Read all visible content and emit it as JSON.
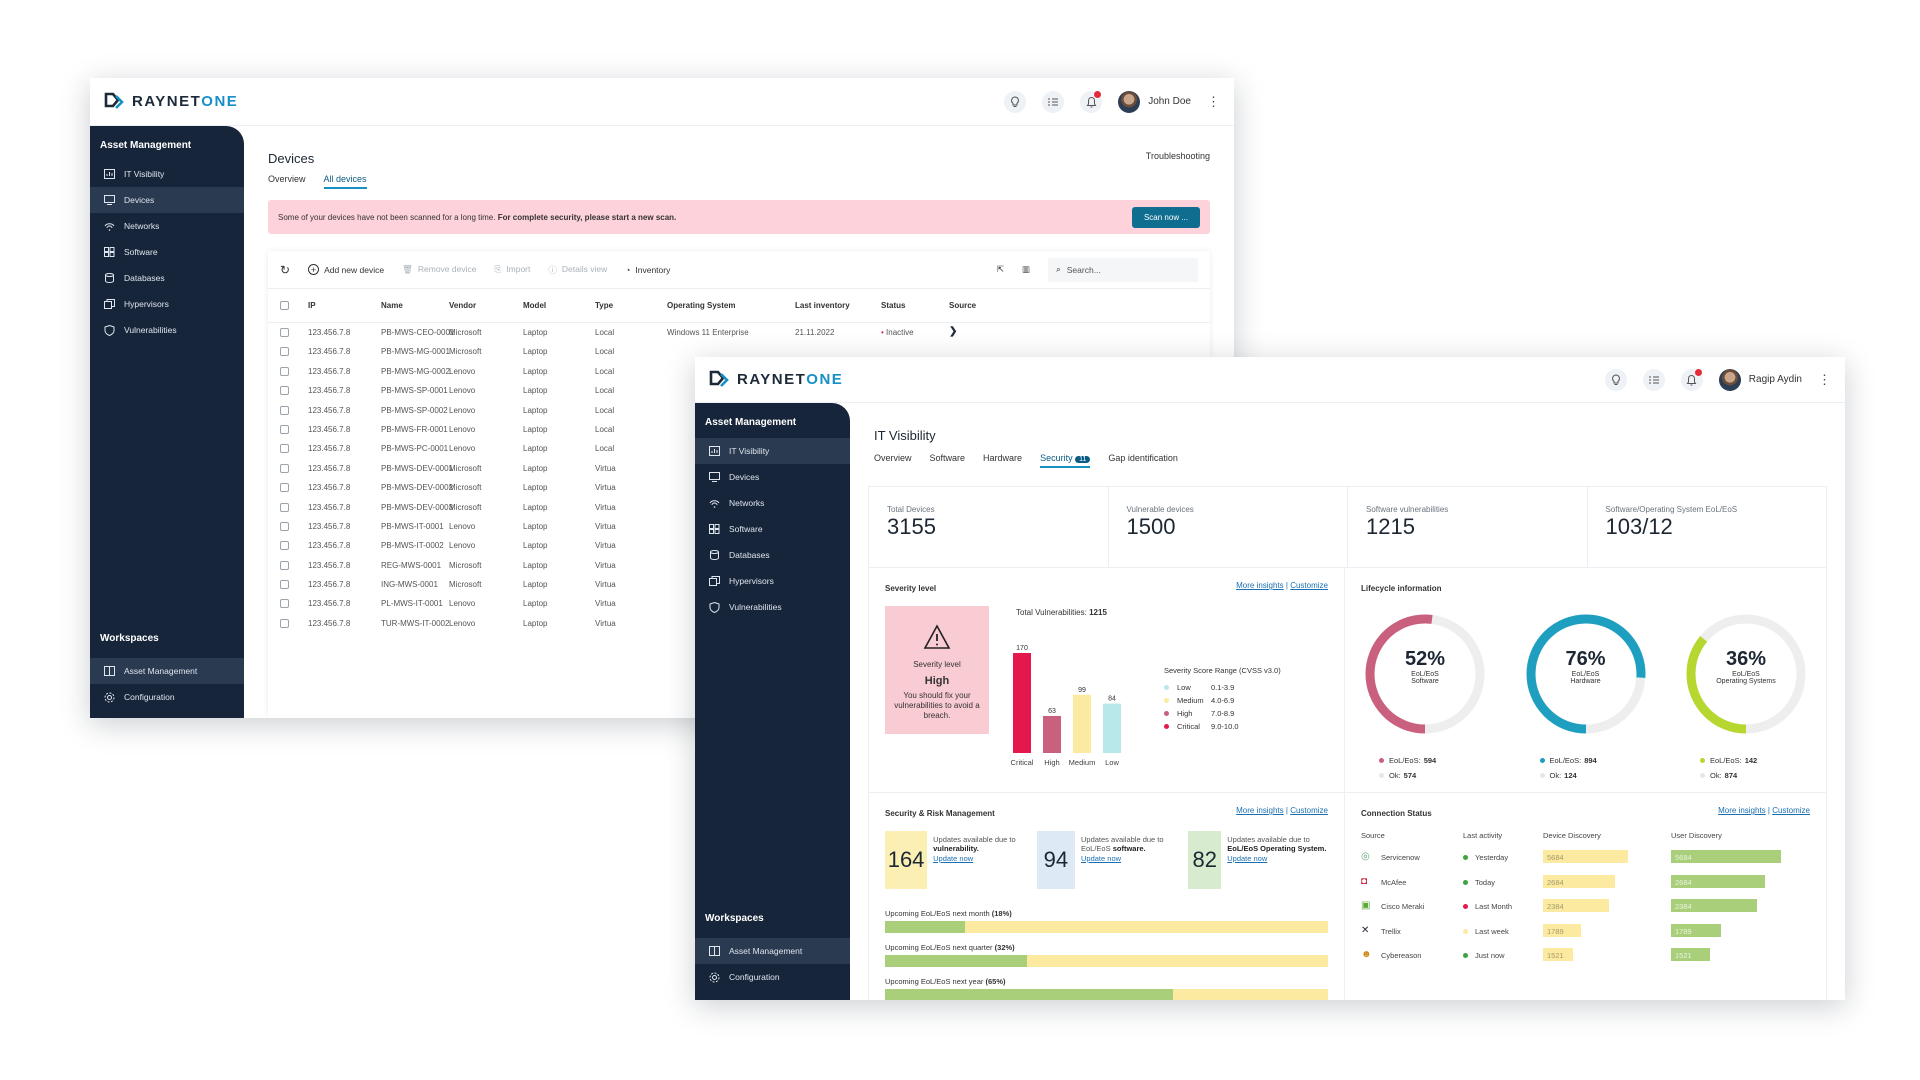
{
  "brand": {
    "name_a": "RAYNET",
    "name_b": "ONE",
    "color_dark": "#1d2a3a",
    "color_accent": "#1790c4"
  },
  "back": {
    "user": "John Doe",
    "sidebar": {
      "title": "Asset Management",
      "items": [
        "IT Visibility",
        "Devices",
        "Networks",
        "Software",
        "Databases",
        "Hypervisors",
        "Vulnerabilities"
      ],
      "workspaces_title": "Workspaces",
      "workspaces": [
        "Asset Management",
        "Configuration"
      ]
    },
    "page_title": "Devices",
    "troubleshooting": "Troubleshooting",
    "tabs": [
      "Overview",
      "All devices"
    ],
    "alert": {
      "text_plain": "Some of your devices have not been scanned for a long time. ",
      "text_bold": "For complete security, please start a new scan.",
      "button": "Scan now ..."
    },
    "toolbar": {
      "add": "Add new device",
      "remove": "Remove device",
      "import": "Import",
      "details": "Details view",
      "inventory": "Inventory",
      "search_placeholder": "Search..."
    },
    "columns": [
      "IP",
      "Name",
      "Vendor",
      "Model",
      "Type",
      "Operating System",
      "Last inventory",
      "Status",
      "Source"
    ],
    "first_row_extra": {
      "os": "Windows 11 Enterprise",
      "last_inventory": "21.11.2022",
      "status": "Inactive"
    },
    "rows": [
      [
        "123.456.7.8",
        "PB-MWS-CEO-0001",
        "Microsoft",
        "Laptop",
        "Local"
      ],
      [
        "123.456.7.8",
        "PB-MWS-MG-0001",
        "Microsoft",
        "Laptop",
        "Local"
      ],
      [
        "123.456.7.8",
        "PB-MWS-MG-0002",
        "Lenovo",
        "Laptop",
        "Local"
      ],
      [
        "123.456.7.8",
        "PB-MWS-SP-0001",
        "Lenovo",
        "Laptop",
        "Local"
      ],
      [
        "123.456.7.8",
        "PB-MWS-SP-0002",
        "Lenovo",
        "Laptop",
        "Local"
      ],
      [
        "123.456.7.8",
        "PB-MWS-FR-0001",
        "Lenovo",
        "Laptop",
        "Local"
      ],
      [
        "123.456.7.8",
        "PB-MWS-PC-0001",
        "Lenovo",
        "Laptop",
        "Local"
      ],
      [
        "123.456.7.8",
        "PB-MWS-DEV-0001",
        "Microsoft",
        "Laptop",
        "Virtua"
      ],
      [
        "123.456.7.8",
        "PB-MWS-DEV-0002",
        "Microsoft",
        "Laptop",
        "Virtua"
      ],
      [
        "123.456.7.8",
        "PB-MWS-DEV-0003",
        "Microsoft",
        "Laptop",
        "Virtua"
      ],
      [
        "123.456.7.8",
        "PB-MWS-IT-0001",
        "Lenovo",
        "Laptop",
        "Virtua"
      ],
      [
        "123.456.7.8",
        "PB-MWS-IT-0002",
        "Lenovo",
        "Laptop",
        "Virtua"
      ],
      [
        "123.456.7.8",
        "REG-MWS-0001",
        "Microsoft",
        "Laptop",
        "Virtua"
      ],
      [
        "123.456.7.8",
        "ING-MWS-0001",
        "Microsoft",
        "Laptop",
        "Virtua"
      ],
      [
        "123.456.7.8",
        "PL-MWS-IT-0001",
        "Lenovo",
        "Laptop",
        "Virtua"
      ],
      [
        "123.456.7.8",
        "TUR-MWS-IT-0002",
        "Lenovo",
        "Laptop",
        "Virtua"
      ]
    ]
  },
  "front": {
    "user": "Ragip Aydin",
    "sidebar": {
      "title": "Asset Management",
      "items": [
        "IT Visibility",
        "Devices",
        "Networks",
        "Software",
        "Databases",
        "Hypervisors",
        "Vulnerabilities"
      ],
      "workspaces_title": "Workspaces",
      "workspaces": [
        "Asset Management",
        "Configuration"
      ]
    },
    "page_title": "IT Visibility",
    "tabs": [
      "Overview",
      "Software",
      "Hardware",
      "Security",
      "Gap identification"
    ],
    "security_badge": "11",
    "kpis": [
      {
        "label": "Total Devices",
        "value": "3155"
      },
      {
        "label": "Vulnerable devices",
        "value": "1500"
      },
      {
        "label": "Software vulnerabilities",
        "value": "1215"
      },
      {
        "label": "Software/Operating System EoL/EoS",
        "value": "103/12"
      }
    ],
    "more_insights": "More insights",
    "customize": "Customize",
    "severity": {
      "title": "Severity level",
      "box_label": "Severity level",
      "box_value": "High",
      "box_text": "You should fix your vulnerabilities to avoid a breach.",
      "total_label": "Total Vulnerabilities:",
      "total_value": "1215",
      "range_title": "Severity Score Range (CVSS v3.0)",
      "legend": [
        {
          "name": "Low",
          "range": "0.1-3.9",
          "color": "#b8e8ea"
        },
        {
          "name": "Medium",
          "range": "4.0-6.9",
          "color": "#fbeaa0"
        },
        {
          "name": "High",
          "range": "7.0-8.9",
          "color": "#c9607e"
        },
        {
          "name": "Critical",
          "range": "9.0-10.0",
          "color": "#e4184d"
        }
      ]
    },
    "chart_data": {
      "type": "bar",
      "categories": [
        "Critical",
        "High",
        "Medium",
        "Low"
      ],
      "values": [
        170,
        63,
        99,
        84
      ],
      "colors": [
        "#e4184d",
        "#c9607e",
        "#fbeaa0",
        "#b8e8ea"
      ],
      "ylim": [
        0,
        170
      ]
    },
    "lifecycle": {
      "title": "Lifecycle information",
      "rings": [
        {
          "pct": "52%",
          "fraction": 0.52,
          "line1": "EoL/EoS",
          "line2": "Software",
          "eol_label": "EoL/EoS:",
          "eol": "594",
          "ok_label": "Ok:",
          "ok": "574",
          "color": "#c9607e"
        },
        {
          "pct": "76%",
          "fraction": 0.76,
          "line1": "EoL/EoS",
          "line2": "Hardware",
          "eol_label": "EoL/EoS:",
          "eol": "894",
          "ok_label": "Ok:",
          "ok": "124",
          "color": "#1e9fc0"
        },
        {
          "pct": "36%",
          "fraction": 0.36,
          "line1": "EoL/EoS",
          "line2": "Operating Systems",
          "eol_label": "EoL/EoS:",
          "eol": "142",
          "ok_label": "Ok:",
          "ok": "874",
          "color": "#b6d630"
        }
      ]
    },
    "risk": {
      "title": "Security & Risk Management",
      "tiles": [
        {
          "value": "164",
          "text": "Updates available due to",
          "bold": "vulnerability.",
          "link": "Update now",
          "color": "#fcefb4"
        },
        {
          "value": "94",
          "text": "Updates available due to EoL/EoS",
          "bold": "software.",
          "link": "Update now",
          "color": "#dde9f4"
        },
        {
          "value": "82",
          "text": "Updates available due to",
          "bold": "EoL/EoS Operating System.",
          "link": "Update now",
          "color": "#d7eccf"
        }
      ],
      "progress": [
        {
          "label": "Upcoming EoL/EoS next month",
          "pct_label": "(18%)",
          "fraction": 0.18
        },
        {
          "label": "Upcoming EoL/EoS next quarter",
          "pct_label": "(32%)",
          "fraction": 0.32
        },
        {
          "label": "Upcoming EoL/EoS next year",
          "pct_label": "(65%)",
          "fraction": 0.65
        }
      ]
    },
    "connection": {
      "title": "Connection Status",
      "columns": [
        "Source",
        "Last activity",
        "Device Discovery",
        "User Discovery"
      ],
      "rows": [
        {
          "source": "Servicenow",
          "icon": "servicenow-icon",
          "activity": "Yesterday",
          "dot": "#3ea33e",
          "device": "5684",
          "device_f": 1.0,
          "user": "5684",
          "user_f": 1.0
        },
        {
          "source": "McAfee",
          "icon": "mcafee-icon",
          "activity": "Today",
          "dot": "#3ea33e",
          "device": "2684",
          "device_f": 0.85,
          "user": "2684",
          "user_f": 0.85
        },
        {
          "source": "Cisco Meraki",
          "icon": "cisco-meraki-icon",
          "activity": "Last Month",
          "dot": "#e4184d",
          "device": "2384",
          "device_f": 0.78,
          "user": "2384",
          "user_f": 0.78
        },
        {
          "source": "Trellix",
          "icon": "trellix-icon",
          "activity": "Last week",
          "dot": "#fbeaa0",
          "device": "1789",
          "device_f": 0.45,
          "user": "1789",
          "user_f": 0.45
        },
        {
          "source": "Cybereason",
          "icon": "cybereason-icon",
          "activity": "Just now",
          "dot": "#3ea33e",
          "device": "1521",
          "device_f": 0.35,
          "user": "1521",
          "user_f": 0.35
        }
      ]
    }
  }
}
